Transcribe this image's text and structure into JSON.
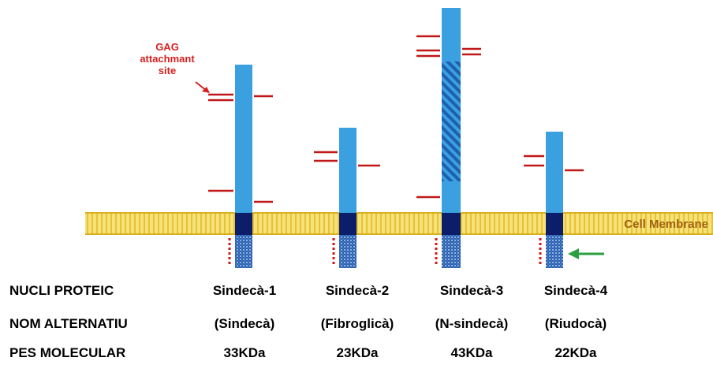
{
  "annotation": {
    "lines": [
      "GAG",
      "attachmant",
      "site"
    ]
  },
  "membrane_label": "Cell Membrane",
  "table": {
    "rows": [
      {
        "label": "NUCLI PROTEIC",
        "cells": [
          "Sindecà-1",
          "Sindecà-2",
          "Sindecà-3",
          "Sindecà-4"
        ]
      },
      {
        "label": "NOM ALTERNATIU",
        "cells": [
          "(Sindecà)",
          "(Fibroglicà)",
          "(N-sindecà)",
          "(Riudocà)"
        ]
      },
      {
        "label": "PES MOLECULAR",
        "cells": [
          "33KDa",
          "23KDa",
          "43KDa",
          "22KDa"
        ]
      }
    ]
  }
}
